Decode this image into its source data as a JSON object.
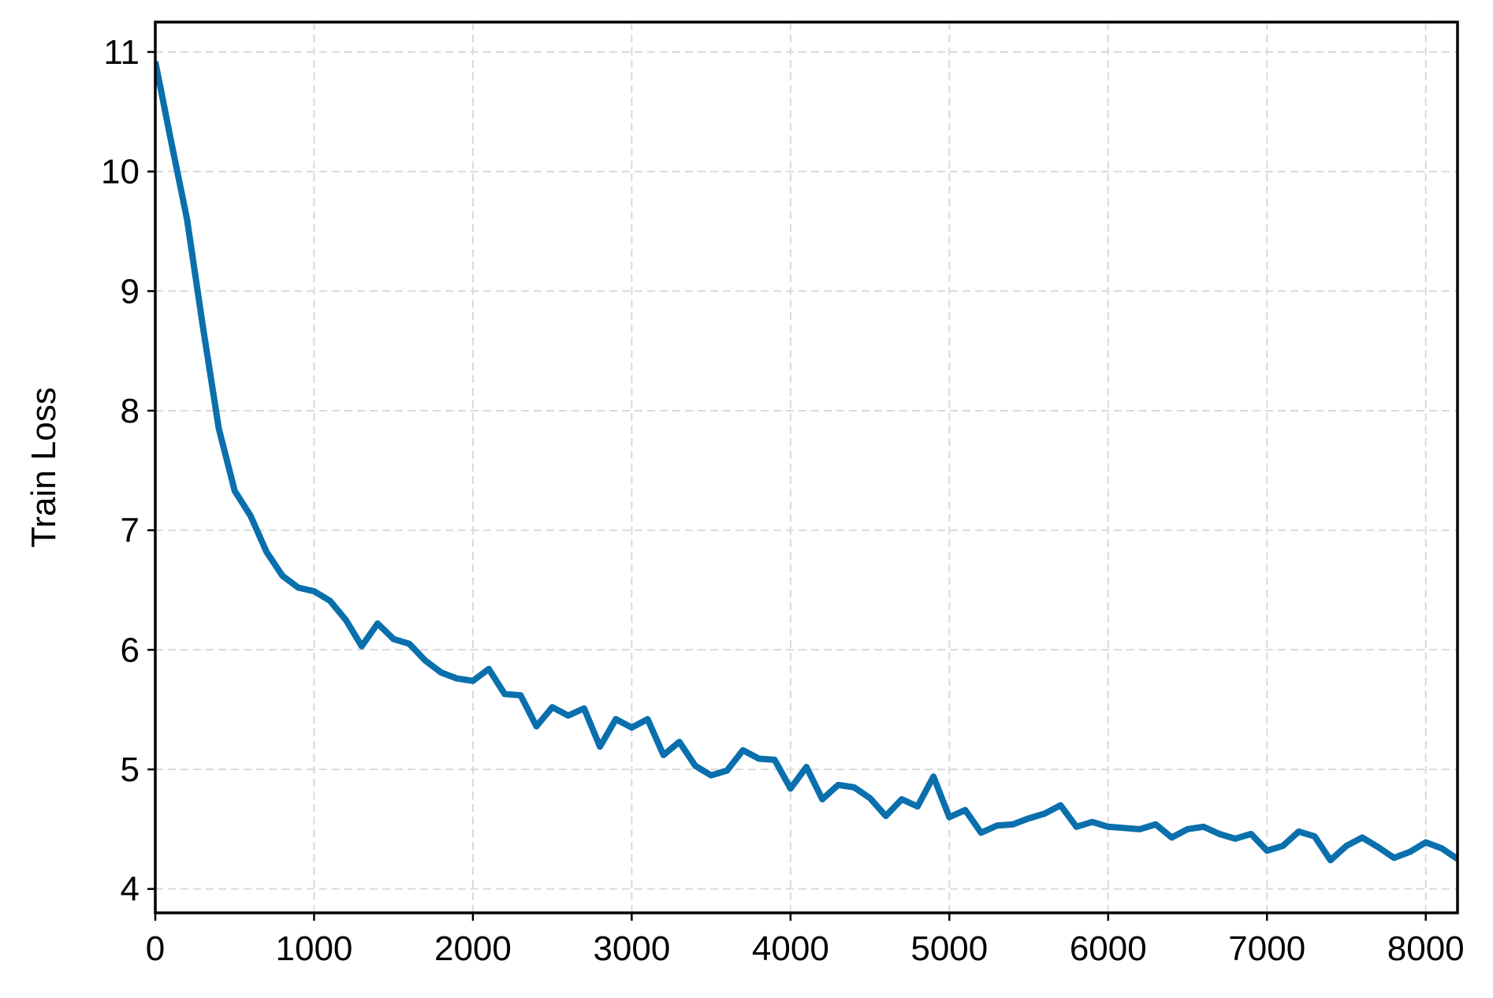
{
  "chart_data": {
    "type": "line",
    "title": "",
    "xlabel": "",
    "ylabel": "Train Loss",
    "xlim": [
      0,
      8200
    ],
    "ylim": [
      3.8,
      11.25
    ],
    "grid": true,
    "x_ticks": [
      0,
      1000,
      2000,
      3000,
      4000,
      5000,
      6000,
      7000,
      8000
    ],
    "x_tick_labels": [
      "0",
      "1000",
      "2000",
      "3000",
      "4000",
      "5000",
      "6000",
      "7000",
      "8000"
    ],
    "y_ticks": [
      4,
      5,
      6,
      7,
      8,
      9,
      10,
      11
    ],
    "y_tick_labels": [
      "4",
      "5",
      "6",
      "7",
      "8",
      "9",
      "10",
      "11"
    ],
    "series": [
      {
        "color": "#0a6fad",
        "x": [
          0,
          100,
          200,
          300,
          400,
          500,
          600,
          700,
          800,
          900,
          1000,
          1100,
          1200,
          1300,
          1400,
          1500,
          1600,
          1700,
          1800,
          1900,
          2000,
          2100,
          2200,
          2300,
          2400,
          2500,
          2600,
          2700,
          2800,
          2900,
          3000,
          3100,
          3200,
          3300,
          3400,
          3500,
          3600,
          3700,
          3800,
          3900,
          4000,
          4100,
          4200,
          4300,
          4400,
          4500,
          4600,
          4700,
          4800,
          4900,
          5000,
          5100,
          5200,
          5300,
          5400,
          5500,
          5600,
          5700,
          5800,
          5900,
          6000,
          6100,
          6200,
          6300,
          6400,
          6500,
          6600,
          6700,
          6800,
          6900,
          7000,
          7100,
          7200,
          7300,
          7400,
          7500,
          7600,
          7700,
          7800,
          7900,
          8000,
          8100,
          8200
        ],
        "y": [
          10.92,
          10.25,
          9.6,
          8.7,
          7.85,
          7.33,
          7.12,
          6.82,
          6.62,
          6.52,
          6.49,
          6.41,
          6.25,
          6.03,
          6.22,
          6.09,
          6.05,
          5.91,
          5.81,
          5.76,
          5.74,
          5.84,
          5.63,
          5.62,
          5.36,
          5.52,
          5.45,
          5.51,
          5.19,
          5.42,
          5.35,
          5.42,
          5.12,
          5.23,
          5.03,
          4.95,
          4.99,
          5.16,
          5.09,
          5.08,
          4.84,
          5.02,
          4.75,
          4.87,
          4.85,
          4.76,
          4.61,
          4.75,
          4.69,
          4.94,
          4.6,
          4.66,
          4.47,
          4.53,
          4.54,
          4.59,
          4.63,
          4.7,
          4.52,
          4.56,
          4.52,
          4.51,
          4.5,
          4.54,
          4.43,
          4.5,
          4.52,
          4.46,
          4.42,
          4.46,
          4.32,
          4.36,
          4.48,
          4.44,
          4.24,
          4.36,
          4.43,
          4.35,
          4.26,
          4.31,
          4.39,
          4.34,
          4.25
        ]
      }
    ]
  }
}
